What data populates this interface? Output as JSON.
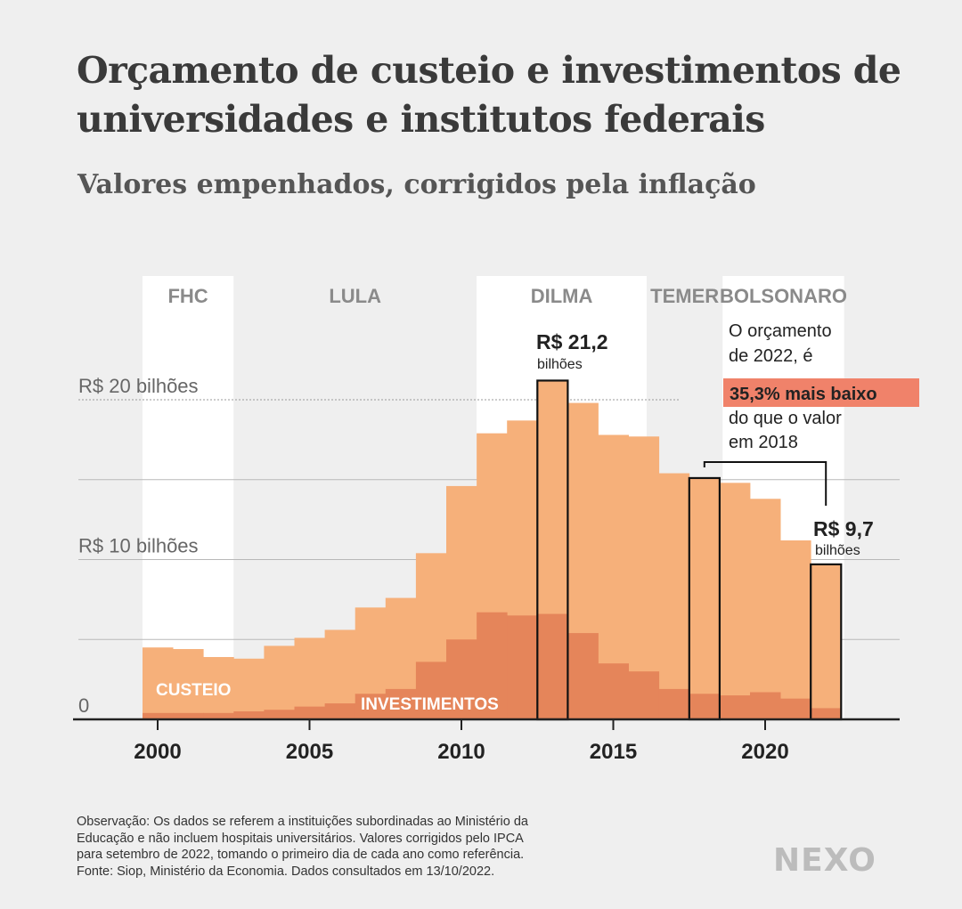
{
  "header": {
    "title": "Orçamento de custeio e investimentos de universidades e institutos federais",
    "subtitle": "Valores empenhados, corrigidos pela inflação"
  },
  "chart_data": {
    "type": "bar",
    "stacked": false,
    "x": [
      2000,
      2001,
      2002,
      2003,
      2004,
      2005,
      2006,
      2007,
      2008,
      2009,
      2010,
      2011,
      2012,
      2013,
      2014,
      2015,
      2016,
      2017,
      2018,
      2019,
      2020,
      2021,
      2022
    ],
    "series": [
      {
        "name": "CUSTEIO",
        "color": "#f6b07a",
        "values": [
          4.5,
          4.4,
          3.9,
          3.8,
          4.6,
          5.1,
          5.6,
          7.0,
          7.6,
          10.4,
          14.6,
          17.9,
          18.7,
          21.2,
          19.8,
          17.8,
          17.7,
          15.4,
          15.1,
          14.8,
          13.8,
          11.2,
          9.7
        ]
      },
      {
        "name": "INVESTIMENTOS",
        "color": "#e5855a",
        "values": [
          0.4,
          0.4,
          0.4,
          0.5,
          0.6,
          0.8,
          1.0,
          1.6,
          1.9,
          3.6,
          5.0,
          6.7,
          6.5,
          6.6,
          5.4,
          3.5,
          3.0,
          1.9,
          1.6,
          1.5,
          1.7,
          1.3,
          0.7
        ]
      }
    ],
    "highlight_years": [
      2013,
      2018,
      2022
    ],
    "xticks": [
      2000,
      2005,
      2010,
      2015,
      2020
    ],
    "ylim": [
      0,
      23
    ],
    "gridlines": [
      5,
      10,
      15,
      20
    ],
    "ytick_labels": [
      {
        "value": 0,
        "label": "0"
      },
      {
        "value": 10,
        "label": "R$ 10 bilhões"
      },
      {
        "value": 20,
        "label": "R$ 20 bilhões"
      }
    ],
    "series_labels": {
      "custeio": "CUSTEIO",
      "investimentos": "INVESTIMENTOS"
    },
    "periods": [
      {
        "name": "FHC",
        "start": 1999.5,
        "end": 2002.5,
        "shade": true
      },
      {
        "name": "LULA",
        "start": 2002.5,
        "end": 2010.5,
        "shade": false
      },
      {
        "name": "DILMA",
        "start": 2010.5,
        "end": 2016.1,
        "shade": true
      },
      {
        "name": "TEMER",
        "start": 2016.1,
        "end": 2018.6,
        "shade": false
      },
      {
        "name": "BOLSONARO",
        "start": 2018.6,
        "end": 2022.6,
        "shade": true
      }
    ],
    "annotations": {
      "peak_value": "R$ 21,2",
      "peak_unit": "bilhões",
      "last_value": "R$ 9,7",
      "last_unit": "bilhões",
      "note_line1": "O orçamento",
      "note_line2": "de 2022, é",
      "note_highlight": "35,3% mais baixo",
      "note_line3": "do que o valor",
      "note_line4": "em 2018",
      "highlight_color": "#f0826a"
    }
  },
  "footnote": {
    "line1": "Observação: Os dados se referem a instituições subordinadas ao Ministério da",
    "line2": "Educação e não incluem hospitais universitários. Valores corrigidos pelo IPCA",
    "line3": "para setembro de 2022, tomando o primeiro dia de cada ano como referência.",
    "line4": "Fonte: Siop, Ministério da Economia. Dados consultados em 13/10/2022."
  },
  "brand": {
    "logo": "NEXO"
  }
}
